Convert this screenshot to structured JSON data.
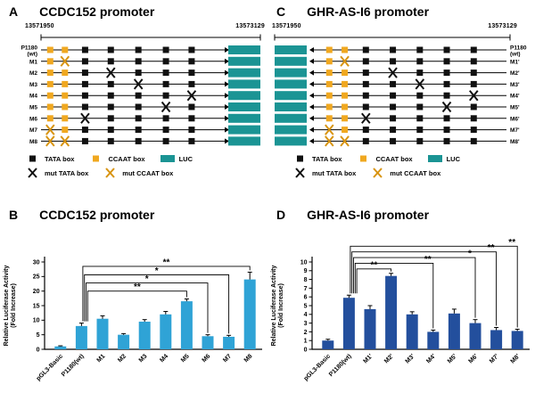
{
  "colors": {
    "bar_light_blue": "#2FA3D6",
    "bar_dark_blue": "#234F9D",
    "luc_teal": "#1B9494",
    "ccaat_yellow": "#F0A820",
    "tata_black": "#111111",
    "mut_ccaat_stroke": "#D89412",
    "axis": "#000000"
  },
  "legend": {
    "row1": [
      {
        "icon": "tata",
        "label": "TATA box"
      },
      {
        "icon": "ccaat",
        "label": "CCAAT box"
      },
      {
        "icon": "luc",
        "label": "LUC"
      }
    ],
    "row2": [
      {
        "icon": "mut_tata",
        "label": "mut TATA box"
      },
      {
        "icon": "mut_ccaat",
        "label": "mut CCAAT box"
      }
    ]
  },
  "construct_panels": [
    {
      "letter": "A",
      "title": "CCDC152 promoter",
      "coord_left": "13571950",
      "coord_right": "13573129",
      "luc_side": "right",
      "base": [
        {
          "t": "ccaat",
          "p": 5
        },
        {
          "t": "ccaat",
          "p": 13
        },
        {
          "t": "tata",
          "p": 24
        },
        {
          "t": "tata",
          "p": 38
        },
        {
          "t": "tata",
          "p": 53
        },
        {
          "t": "tata",
          "p": 68
        },
        {
          "t": "tata",
          "p": 82
        }
      ],
      "rows": [
        {
          "label_lines": [
            "P1180",
            "(wt)"
          ],
          "mut": []
        },
        {
          "label_lines": [
            "M1"
          ],
          "mut": [
            1
          ]
        },
        {
          "label_lines": [
            "M2"
          ],
          "mut": [
            3
          ]
        },
        {
          "label_lines": [
            "M3"
          ],
          "mut": [
            4
          ]
        },
        {
          "label_lines": [
            "M4"
          ],
          "mut": [
            6
          ]
        },
        {
          "label_lines": [
            "M5"
          ],
          "mut": [
            5
          ]
        },
        {
          "label_lines": [
            "M6"
          ],
          "mut": [
            2
          ]
        },
        {
          "label_lines": [
            "M7"
          ],
          "mut": [
            0
          ]
        },
        {
          "label_lines": [
            "M8"
          ],
          "mut": [
            0,
            1
          ]
        }
      ]
    },
    {
      "letter": "C",
      "title": "GHR-AS-I6 promoter",
      "coord_left": "13571950",
      "coord_right": "13573129",
      "luc_side": "left",
      "base": [
        {
          "t": "ccaat",
          "p": 8
        },
        {
          "t": "ccaat",
          "p": 16
        },
        {
          "t": "tata",
          "p": 27
        },
        {
          "t": "tata",
          "p": 41
        },
        {
          "t": "tata",
          "p": 55
        },
        {
          "t": "tata",
          "p": 69
        },
        {
          "t": "tata",
          "p": 83
        }
      ],
      "rows": [
        {
          "label_lines": [
            "P1180",
            "(wt)"
          ],
          "mut": []
        },
        {
          "label_lines": [
            "M1'"
          ],
          "mut": [
            1
          ]
        },
        {
          "label_lines": [
            "M2'"
          ],
          "mut": [
            3
          ]
        },
        {
          "label_lines": [
            "M3'"
          ],
          "mut": [
            4
          ]
        },
        {
          "label_lines": [
            "M4'"
          ],
          "mut": [
            6
          ]
        },
        {
          "label_lines": [
            "M5'"
          ],
          "mut": [
            5
          ]
        },
        {
          "label_lines": [
            "M6'"
          ],
          "mut": [
            2
          ]
        },
        {
          "label_lines": [
            "M7'"
          ],
          "mut": [
            0
          ]
        },
        {
          "label_lines": [
            "M8'"
          ],
          "mut": [
            0,
            1
          ]
        }
      ]
    }
  ],
  "chart_data": [
    {
      "type": "bar",
      "letter": "B",
      "title": "CCDC152 promoter",
      "categories": [
        "pGL3-Basic",
        "P1180(wt)",
        "M1",
        "M2",
        "M3",
        "M4",
        "M5",
        "M6",
        "M7",
        "M8"
      ],
      "values": [
        1,
        8,
        10.5,
        5,
        9.5,
        12,
        16.5,
        4.5,
        4.3,
        24
      ],
      "errors": [
        0.2,
        1,
        1,
        0.4,
        0.7,
        1,
        0.8,
        0.5,
        0.5,
        2.5
      ],
      "ylabel_line1": "Relative Luciferase Activity",
      "ylabel_line2": "(Fold Increase)",
      "xlabel": "",
      "ylim": [
        0,
        30
      ],
      "yticks": [
        0,
        5,
        10,
        15,
        20,
        25,
        30
      ],
      "grid": false,
      "legend_position": "none",
      "bar_color": "#2FA3D6",
      "significance": [
        {
          "from": "P1180(wt)",
          "to": "M8",
          "label": "**",
          "h": 28.5
        },
        {
          "from": "P1180(wt)",
          "to": "M7",
          "label": "*",
          "h": 25.6
        },
        {
          "from": "P1180(wt)",
          "to": "M6",
          "label": "*",
          "h": 22.8
        },
        {
          "from": "P1180(wt)",
          "to": "M5",
          "label": "**",
          "h": 20
        }
      ]
    },
    {
      "type": "bar",
      "letter": "D",
      "title": "GHR-AS-I6 promoter",
      "categories": [
        "pGL3-Basic",
        "P1180(wt)",
        "M1'",
        "M2'",
        "M3'",
        "M4'",
        "M5'",
        "M6'",
        "M7'",
        "M8'"
      ],
      "values": [
        1,
        5.9,
        4.6,
        8.4,
        4,
        2,
        4.1,
        3,
        2.2,
        2.1
      ],
      "errors": [
        0.15,
        0.3,
        0.4,
        0.3,
        0.3,
        0.2,
        0.5,
        0.4,
        0.3,
        0.2
      ],
      "ylabel_line1": "Relative Luciferase Activity",
      "ylabel_line2": "(Fold Increase)",
      "xlabel": "",
      "ylim": [
        0,
        10
      ],
      "yticks": [
        0,
        1,
        2,
        3,
        4,
        5,
        6,
        7,
        8,
        9,
        10
      ],
      "grid": false,
      "legend_position": "none",
      "bar_color": "#234F9D",
      "significance": [
        {
          "from": "P1180(wt)",
          "to": "M8'",
          "label": "**",
          "h": 11.8,
          "label_at": "end"
        },
        {
          "from": "P1180(wt)",
          "to": "M7'",
          "label": "**",
          "h": 11.15,
          "label_at": "end"
        },
        {
          "from": "P1180(wt)",
          "to": "M6'",
          "label": "*",
          "h": 10.5,
          "label_at": "end"
        },
        {
          "from": "P1180(wt)",
          "to": "M4'",
          "label": "**",
          "h": 9.85,
          "label_at": "end"
        },
        {
          "from": "P1180(wt)",
          "to": "M2'",
          "label": "**",
          "h": 9.2
        }
      ]
    }
  ]
}
